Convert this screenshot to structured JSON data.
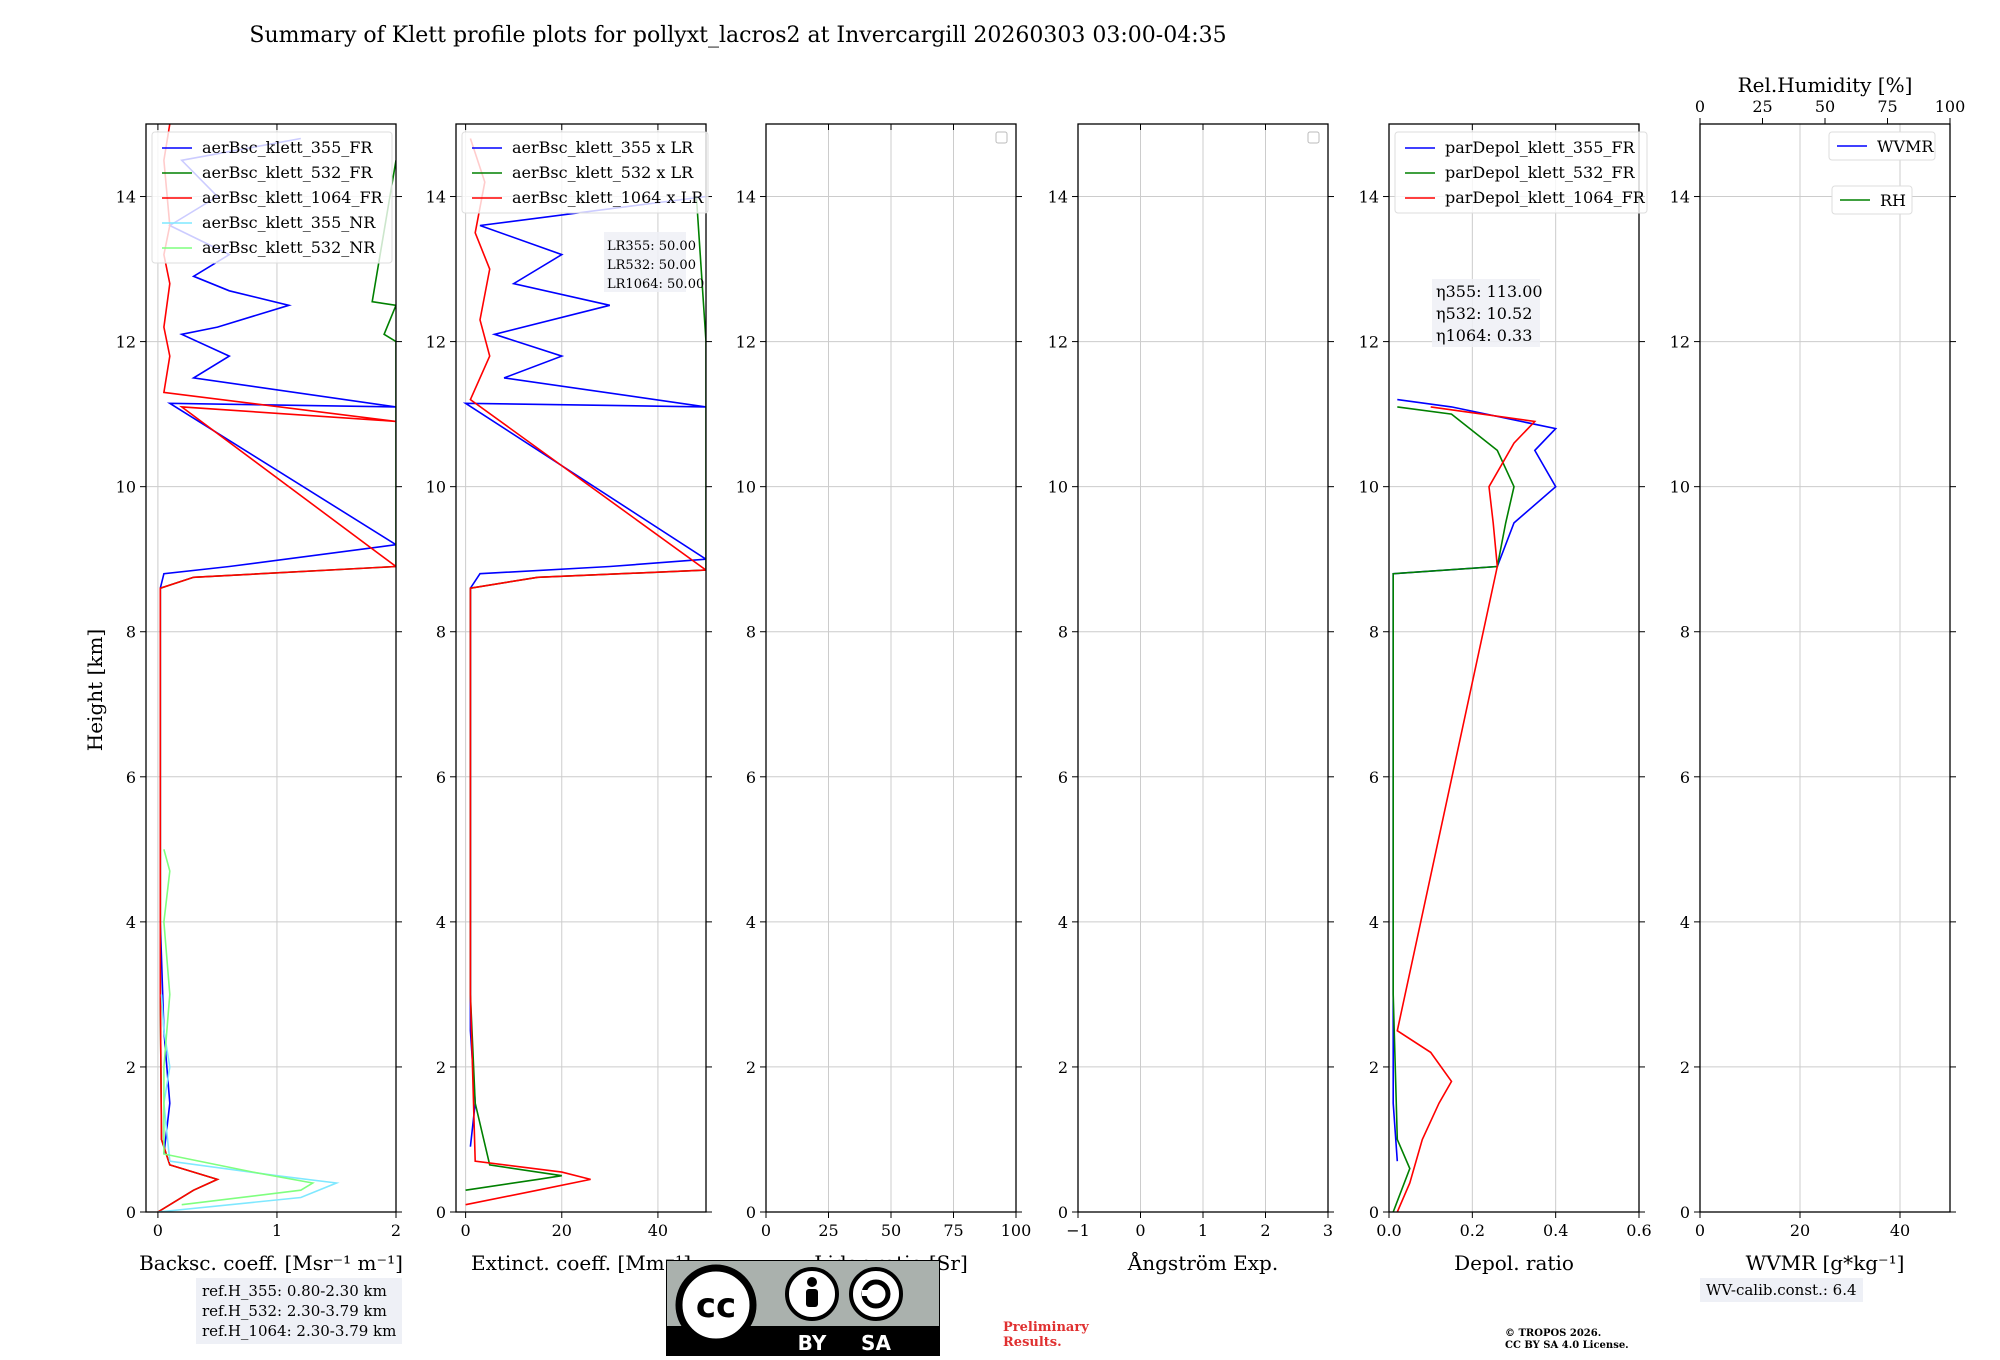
{
  "title": "Summary of Klett profile plots for pollyxt_lacros2 at Invercargill 20260303 03:00-04:35",
  "ylabel": "Height [km]",
  "colors": {
    "c355": "#0000ff",
    "c532": "#008000",
    "c1064": "#ff0000",
    "c355nr": "#7fe8ff",
    "c532nr": "#7fff7f",
    "grid": "#cccccc"
  },
  "chart_data": [
    {
      "type": "line",
      "id": "backscatter",
      "xlabel": "Backsc. coeff. [Msr⁻¹ m⁻¹]",
      "xlim": [
        -0.1,
        2
      ],
      "xticks": [
        0,
        1,
        2
      ],
      "ylim": [
        0,
        15
      ],
      "yticks": [
        0,
        2,
        4,
        6,
        8,
        10,
        12,
        14
      ],
      "legend": [
        "aerBsc_klett_355_FR",
        "aerBsc_klett_532_FR",
        "aerBsc_klett_1064_FR",
        "aerBsc_klett_355_NR",
        "aerBsc_klett_532_NR"
      ],
      "series": [
        {
          "name": "aerBsc_klett_355_FR",
          "color": "#0000ff",
          "points": [
            [
              0.05,
              0.8
            ],
            [
              0.1,
              1.5
            ],
            [
              0.05,
              2.5
            ],
            [
              0.02,
              4
            ],
            [
              0.02,
              6
            ],
            [
              0.02,
              8
            ],
            [
              0.02,
              8.6
            ],
            [
              0.05,
              8.8
            ],
            [
              0.6,
              8.9
            ],
            [
              2,
              9.2
            ],
            [
              0.1,
              11.15
            ],
            [
              2,
              11.1
            ],
            [
              0.3,
              11.5
            ],
            [
              0.6,
              11.8
            ],
            [
              0.2,
              12.1
            ],
            [
              0.5,
              12.2
            ],
            [
              1.1,
              12.5
            ],
            [
              0.6,
              12.7
            ],
            [
              0.3,
              12.9
            ],
            [
              0.6,
              13.2
            ],
            [
              0.1,
              13.6
            ],
            [
              0.5,
              14.0
            ],
            [
              0.2,
              14.5
            ],
            [
              1.2,
              14.8
            ]
          ]
        },
        {
          "name": "aerBsc_klett_532_FR",
          "color": "#008000",
          "points": [
            [
              0,
              0
            ],
            [
              0.3,
              0.3
            ],
            [
              0.5,
              0.45
            ],
            [
              0.1,
              0.65
            ],
            [
              0.03,
              1
            ],
            [
              0.02,
              3
            ],
            [
              0.02,
              6
            ],
            [
              0.02,
              8.6
            ],
            [
              0.3,
              8.75
            ],
            [
              2,
              8.9
            ],
            [
              2,
              12.0
            ],
            [
              1.9,
              12.1
            ],
            [
              2,
              12.5
            ],
            [
              1.8,
              12.55
            ],
            [
              2,
              14.5
            ]
          ]
        },
        {
          "name": "aerBsc_klett_1064_FR",
          "color": "#ff0000",
          "points": [
            [
              0,
              0
            ],
            [
              0.3,
              0.3
            ],
            [
              0.5,
              0.45
            ],
            [
              0.1,
              0.65
            ],
            [
              0.03,
              1
            ],
            [
              0.02,
              3
            ],
            [
              0.02,
              6
            ],
            [
              0.02,
              8.6
            ],
            [
              0.3,
              8.75
            ],
            [
              2,
              8.9
            ],
            [
              0.2,
              11.1
            ],
            [
              2,
              10.9
            ],
            [
              0.05,
              11.3
            ],
            [
              0.1,
              11.8
            ],
            [
              0.05,
              12.2
            ],
            [
              0.1,
              12.8
            ],
            [
              0.05,
              13.2
            ],
            [
              0.1,
              13.6
            ],
            [
              0.05,
              14.5
            ],
            [
              0.1,
              15
            ]
          ]
        },
        {
          "name": "aerBsc_klett_355_NR",
          "color": "#7fe8ff",
          "points": [
            [
              0,
              0
            ],
            [
              1.2,
              0.2
            ],
            [
              1.5,
              0.4
            ],
            [
              1.0,
              0.5
            ],
            [
              0.1,
              0.7
            ],
            [
              0.05,
              1.5
            ],
            [
              0.1,
              2.0
            ],
            [
              0.05,
              2.5
            ],
            [
              0.03,
              3
            ]
          ]
        },
        {
          "name": "aerBsc_klett_532_NR",
          "color": "#7fff7f",
          "points": [
            [
              0.2,
              0.1
            ],
            [
              1.2,
              0.3
            ],
            [
              1.3,
              0.4
            ],
            [
              0.8,
              0.55
            ],
            [
              0.05,
              0.8
            ],
            [
              0.05,
              2
            ],
            [
              0.1,
              3
            ],
            [
              0.05,
              4
            ],
            [
              0.1,
              4.7
            ],
            [
              0.05,
              5
            ]
          ]
        }
      ],
      "ref_heights": [
        "ref.H_355: 0.80-2.30 km",
        "ref.H_532: 2.30-3.79 km",
        "ref.H_1064: 2.30-3.79 km"
      ]
    },
    {
      "type": "line",
      "id": "extinction",
      "xlabel": "Extinct. coeff. [Mm⁻¹]",
      "xlim": [
        -2,
        50
      ],
      "xticks": [
        0,
        20,
        40
      ],
      "ylim": [
        0,
        15
      ],
      "yticks": [
        0,
        2,
        4,
        6,
        8,
        10,
        12,
        14
      ],
      "legend": [
        "aerBsc_klett_355 x LR",
        "aerBsc_klett_532 x LR",
        "aerBsc_klett_1064 x LR"
      ],
      "lidar_ratio_labels": [
        "LR355: 50.00",
        "LR532: 50.00",
        "LR1064: 50.00"
      ],
      "series": [
        {
          "name": "aerBsc_klett_355 x LR",
          "color": "#0000ff",
          "points": [
            [
              1,
              0.9
            ],
            [
              2,
              1.5
            ],
            [
              1,
              2.5
            ],
            [
              1,
              4
            ],
            [
              1,
              6
            ],
            [
              1,
              8.6
            ],
            [
              3,
              8.8
            ],
            [
              30,
              8.9
            ],
            [
              50,
              9.0
            ],
            [
              0,
              11.15
            ],
            [
              50,
              11.1
            ],
            [
              8,
              11.5
            ],
            [
              20,
              11.8
            ],
            [
              6,
              12.1
            ],
            [
              30,
              12.5
            ],
            [
              10,
              12.8
            ],
            [
              20,
              13.2
            ],
            [
              3,
              13.6
            ],
            [
              50,
              14.0
            ]
          ]
        },
        {
          "name": "aerBsc_klett_532 x LR",
          "color": "#008000",
          "points": [
            [
              0,
              0.3
            ],
            [
              15,
              0.45
            ],
            [
              20,
              0.5
            ],
            [
              5,
              0.65
            ],
            [
              2,
              1.5
            ],
            [
              1,
              3
            ],
            [
              1,
              6
            ],
            [
              1,
              8.6
            ],
            [
              15,
              8.75
            ],
            [
              50,
              8.85
            ],
            [
              50,
              12
            ],
            [
              48,
              14
            ]
          ]
        },
        {
          "name": "aerBsc_klett_1064 x LR",
          "color": "#ff0000",
          "points": [
            [
              0,
              0.1
            ],
            [
              15,
              0.3
            ],
            [
              26,
              0.45
            ],
            [
              20,
              0.55
            ],
            [
              2,
              0.7
            ],
            [
              1,
              3
            ],
            [
              1,
              6
            ],
            [
              1,
              8.6
            ],
            [
              15,
              8.75
            ],
            [
              50,
              8.85
            ],
            [
              1,
              11.2
            ],
            [
              5,
              11.8
            ],
            [
              3,
              12.3
            ],
            [
              5,
              13.0
            ],
            [
              2,
              13.5
            ],
            [
              4,
              14.2
            ],
            [
              1,
              14.8
            ]
          ]
        }
      ]
    },
    {
      "type": "line",
      "id": "lidar_ratio",
      "xlabel": "Lidar ratio [Sr]",
      "xlim": [
        0,
        100
      ],
      "xticks": [
        0,
        25,
        50,
        75,
        100
      ],
      "ylim": [
        0,
        15
      ],
      "yticks": [
        0,
        2,
        4,
        6,
        8,
        10,
        12,
        14
      ],
      "series": []
    },
    {
      "type": "line",
      "id": "angstrom",
      "xlabel": "Ångström Exp.",
      "xlim": [
        -1,
        3
      ],
      "xticks": [
        -1,
        0,
        1,
        2,
        3
      ],
      "ylim": [
        0,
        15
      ],
      "yticks": [
        0,
        2,
        4,
        6,
        8,
        10,
        12,
        14
      ],
      "series": []
    },
    {
      "type": "line",
      "id": "depol",
      "xlabel": "Depol. ratio",
      "xlim": [
        0,
        0.6
      ],
      "xticks": [
        0.0,
        0.2,
        0.4,
        0.6
      ],
      "ylim": [
        0,
        15
      ],
      "yticks": [
        0,
        2,
        4,
        6,
        8,
        10,
        12,
        14
      ],
      "legend": [
        "parDepol_klett_355_FR",
        "parDepol_klett_532_FR",
        "parDepol_klett_1064_FR"
      ],
      "eta_labels": [
        "η355: 113.00",
        "η532: 10.52",
        "η1064: 0.33"
      ],
      "series": [
        {
          "name": "parDepol_klett_355_FR",
          "color": "#0000ff",
          "points": [
            [
              0.02,
              0.7
            ],
            [
              0.01,
              1.5
            ],
            [
              0.01,
              3
            ],
            [
              0.01,
              8.8
            ],
            [
              0.26,
              8.9
            ],
            [
              0.3,
              9.5
            ],
            [
              0.4,
              10.0
            ],
            [
              0.35,
              10.5
            ],
            [
              0.4,
              10.8
            ],
            [
              0.15,
              11.1
            ],
            [
              0.02,
              11.2
            ]
          ]
        },
        {
          "name": "parDepol_klett_532_FR",
          "color": "#008000",
          "points": [
            [
              0.01,
              0
            ],
            [
              0.05,
              0.6
            ],
            [
              0.02,
              1
            ],
            [
              0.01,
              3
            ],
            [
              0.01,
              8.8
            ],
            [
              0.26,
              8.9
            ],
            [
              0.28,
              9.5
            ],
            [
              0.3,
              10.0
            ],
            [
              0.26,
              10.5
            ],
            [
              0.15,
              11.0
            ],
            [
              0.02,
              11.1
            ]
          ]
        },
        {
          "name": "parDepol_klett_1064_FR",
          "color": "#ff0000",
          "points": [
            [
              0.02,
              0
            ],
            [
              0.05,
              0.4
            ],
            [
              0.08,
              1.0
            ],
            [
              0.12,
              1.5
            ],
            [
              0.15,
              1.8
            ],
            [
              0.1,
              2.2
            ],
            [
              0.02,
              2.5
            ],
            [
              0.26,
              8.9
            ],
            [
              0.25,
              9.5
            ],
            [
              0.24,
              10.0
            ],
            [
              0.3,
              10.6
            ],
            [
              0.35,
              10.9
            ],
            [
              0.1,
              11.1
            ]
          ]
        }
      ]
    },
    {
      "type": "line",
      "id": "wvmr",
      "xlabel": "WVMR [g*kg⁻¹]",
      "xlim": [
        0,
        50
      ],
      "xticks": [
        0,
        20,
        40
      ],
      "top_xlabel": "Rel.Humidity [%]",
      "top_xticks": [
        0,
        25,
        50,
        75,
        100
      ],
      "ylim": [
        0,
        15
      ],
      "yticks": [
        0,
        2,
        4,
        6,
        8,
        10,
        12,
        14
      ],
      "legend": [
        "WVMR",
        "RH"
      ],
      "wv_calib": "WV-calib.const.: 6.4",
      "series": []
    }
  ],
  "footer": {
    "preliminary": [
      "Preliminary",
      "Results."
    ],
    "copyright": [
      "© TROPOS 2026.",
      "CC BY SA 4.0 License."
    ],
    "license_by": "BY",
    "license_sa": "SA",
    "license_cc": "cc"
  }
}
